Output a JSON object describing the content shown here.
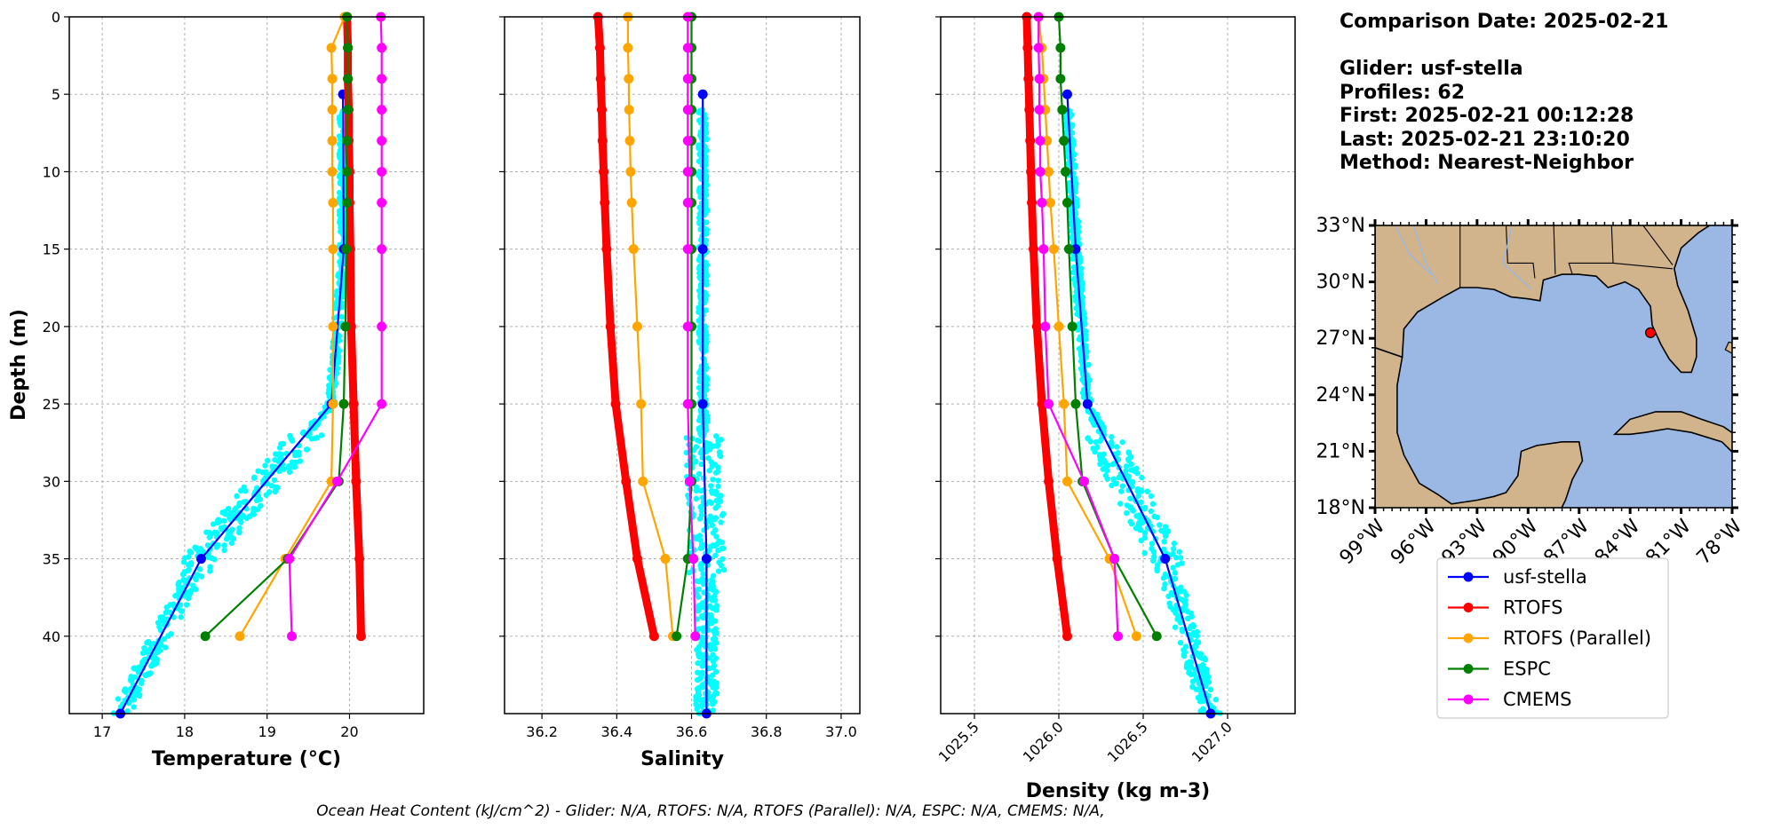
{
  "info": {
    "comparison_date": "Comparison Date: 2025-02-21",
    "glider": "Glider: usf-stella",
    "profiles": "Profiles: 62",
    "first": "First: 2025-02-21 00:12:28",
    "last": "Last: 2025-02-21 23:10:20",
    "method": "Method: Nearest-Neighbor"
  },
  "footer": "Ocean Heat Content (kJ/cm^2) - Glider: N/A,  RTOFS: N/A,  RTOFS (Parallel): N/A,  ESPC: N/A,  CMEMS: N/A,",
  "legend": [
    {
      "label": "usf-stella",
      "color": "#0000ff"
    },
    {
      "label": "RTOFS",
      "color": "#ff0000"
    },
    {
      "label": "RTOFS (Parallel)",
      "color": "#ffa500"
    },
    {
      "label": "ESPC",
      "color": "#008000"
    },
    {
      "label": "CMEMS",
      "color": "#ff00ff"
    }
  ],
  "scatter_color": "#00ffff",
  "map": {
    "lat_ticks": [
      "33°N",
      "30°N",
      "27°N",
      "24°N",
      "21°N",
      "18°N"
    ],
    "lon_ticks": [
      "99°W",
      "96°W",
      "93°W",
      "90°W",
      "87°W",
      "84°W",
      "81°W",
      "78°W"
    ],
    "ocean_color": "#9ab8e3",
    "land_color": "#d2b48c",
    "glider_position": {
      "lon": -82.8,
      "lat": 27.3
    },
    "lon_range": [
      -99,
      -78
    ],
    "lat_range": [
      18,
      33
    ]
  },
  "chart_data": [
    {
      "type": "line",
      "xlabel": "Temperature (°C)",
      "ylabel": "Depth (m)",
      "xlim": [
        16.6,
        20.9
      ],
      "ylim": [
        45,
        0
      ],
      "x_ticks": [
        17,
        18,
        19,
        20
      ],
      "y_ticks": [
        0,
        5,
        10,
        15,
        20,
        25,
        30,
        35,
        40
      ],
      "grid": true,
      "series": [
        {
          "name": "usf-stella",
          "depth": [
            5,
            15,
            25,
            35,
            45
          ],
          "values": [
            19.92,
            19.93,
            19.78,
            18.2,
            17.22
          ]
        },
        {
          "name": "RTOFS",
          "depth": [
            0,
            2,
            4,
            6,
            8,
            10,
            12,
            15,
            20,
            25,
            30,
            35,
            40
          ],
          "values": [
            19.97,
            19.98,
            19.98,
            19.99,
            19.99,
            20.0,
            20.0,
            20.01,
            20.02,
            20.05,
            20.08,
            20.12,
            20.14
          ]
        },
        {
          "name": "RTOFS (Parallel)",
          "depth": [
            0,
            2,
            4,
            6,
            8,
            10,
            12,
            15,
            20,
            25,
            30,
            35,
            40
          ],
          "values": [
            19.94,
            19.78,
            19.79,
            19.79,
            19.79,
            19.79,
            19.8,
            19.8,
            19.8,
            19.8,
            19.78,
            19.22,
            18.67
          ]
        },
        {
          "name": "ESPC",
          "depth": [
            0,
            2,
            4,
            6,
            8,
            10,
            12,
            15,
            20,
            25,
            30,
            35,
            40
          ],
          "values": [
            19.97,
            19.98,
            19.98,
            19.98,
            19.97,
            19.97,
            19.97,
            19.96,
            19.95,
            19.93,
            19.87,
            19.25,
            18.25
          ]
        },
        {
          "name": "CMEMS",
          "depth": [
            0,
            2,
            4,
            6,
            8,
            10,
            12,
            15,
            20,
            25,
            30,
            35,
            40
          ],
          "values": [
            20.38,
            20.39,
            20.39,
            20.39,
            20.39,
            20.39,
            20.39,
            20.39,
            20.39,
            20.39,
            19.85,
            19.27,
            19.3
          ]
        }
      ]
    },
    {
      "type": "line",
      "xlabel": "Salinity",
      "xlim": [
        36.1,
        37.05
      ],
      "ylim": [
        45,
        0
      ],
      "x_ticks": [
        36.2,
        36.4,
        36.6,
        36.8,
        37.0
      ],
      "grid": true,
      "series": [
        {
          "name": "usf-stella",
          "depth": [
            5,
            15,
            25,
            35,
            45
          ],
          "values": [
            36.63,
            36.63,
            36.63,
            36.64,
            36.64
          ]
        },
        {
          "name": "RTOFS",
          "depth": [
            0,
            2,
            4,
            6,
            8,
            10,
            12,
            15,
            20,
            25,
            30,
            35,
            40
          ],
          "values": [
            36.35,
            36.355,
            36.357,
            36.36,
            36.362,
            36.365,
            36.368,
            36.373,
            36.383,
            36.397,
            36.425,
            36.455,
            36.5
          ]
        },
        {
          "name": "RTOFS (Parallel)",
          "depth": [
            0,
            2,
            4,
            6,
            8,
            10,
            12,
            15,
            20,
            25,
            30,
            35,
            40
          ],
          "values": [
            36.43,
            36.43,
            36.432,
            36.433,
            36.435,
            36.437,
            36.44,
            36.445,
            36.455,
            36.465,
            36.47,
            36.53,
            36.55
          ]
        },
        {
          "name": "ESPC",
          "depth": [
            0,
            2,
            4,
            6,
            8,
            10,
            12,
            15,
            20,
            25,
            30,
            35,
            40
          ],
          "values": [
            36.6,
            36.6,
            36.6,
            36.6,
            36.6,
            36.6,
            36.6,
            36.6,
            36.6,
            36.6,
            36.6,
            36.59,
            36.56
          ]
        },
        {
          "name": "CMEMS",
          "depth": [
            0,
            2,
            4,
            6,
            8,
            10,
            12,
            15,
            20,
            25,
            30,
            35,
            40
          ],
          "values": [
            36.59,
            36.59,
            36.59,
            36.59,
            36.59,
            36.59,
            36.59,
            36.59,
            36.59,
            36.59,
            36.595,
            36.605,
            36.61
          ]
        }
      ]
    },
    {
      "type": "line",
      "xlabel": "Density (kg m-3)",
      "xlim": [
        1025.3,
        1027.4
      ],
      "ylim": [
        45,
        0
      ],
      "x_ticks": [
        1025.5,
        1026.0,
        1026.5,
        1027.0
      ],
      "grid": true,
      "series": [
        {
          "name": "usf-stella",
          "depth": [
            5,
            15,
            25,
            35,
            45
          ],
          "values": [
            1026.05,
            1026.1,
            1026.17,
            1026.63,
            1026.9
          ]
        },
        {
          "name": "RTOFS",
          "depth": [
            0,
            2,
            4,
            6,
            8,
            10,
            12,
            15,
            20,
            25,
            30,
            35,
            40
          ],
          "values": [
            1025.81,
            1025.815,
            1025.82,
            1025.825,
            1025.83,
            1025.835,
            1025.84,
            1025.85,
            1025.87,
            1025.9,
            1025.94,
            1025.99,
            1026.05
          ]
        },
        {
          "name": "RTOFS (Parallel)",
          "depth": [
            0,
            2,
            4,
            6,
            8,
            10,
            12,
            15,
            20,
            25,
            30,
            35,
            40
          ],
          "values": [
            1025.88,
            1025.9,
            1025.91,
            1025.92,
            1025.93,
            1025.94,
            1025.95,
            1025.97,
            1026.0,
            1026.03,
            1026.05,
            1026.3,
            1026.46
          ]
        },
        {
          "name": "ESPC",
          "depth": [
            0,
            2,
            4,
            6,
            8,
            10,
            12,
            15,
            20,
            25,
            30,
            35,
            40
          ],
          "values": [
            1026.0,
            1026.01,
            1026.01,
            1026.02,
            1026.03,
            1026.04,
            1026.05,
            1026.06,
            1026.08,
            1026.1,
            1026.14,
            1026.33,
            1026.58
          ]
        },
        {
          "name": "CMEMS",
          "depth": [
            0,
            2,
            4,
            6,
            8,
            10,
            12,
            15,
            20,
            25,
            30,
            35,
            40
          ],
          "values": [
            1025.88,
            1025.88,
            1025.885,
            1025.885,
            1025.89,
            1025.89,
            1025.9,
            1025.91,
            1025.92,
            1025.94,
            1026.15,
            1026.33,
            1026.35
          ]
        }
      ]
    }
  ]
}
